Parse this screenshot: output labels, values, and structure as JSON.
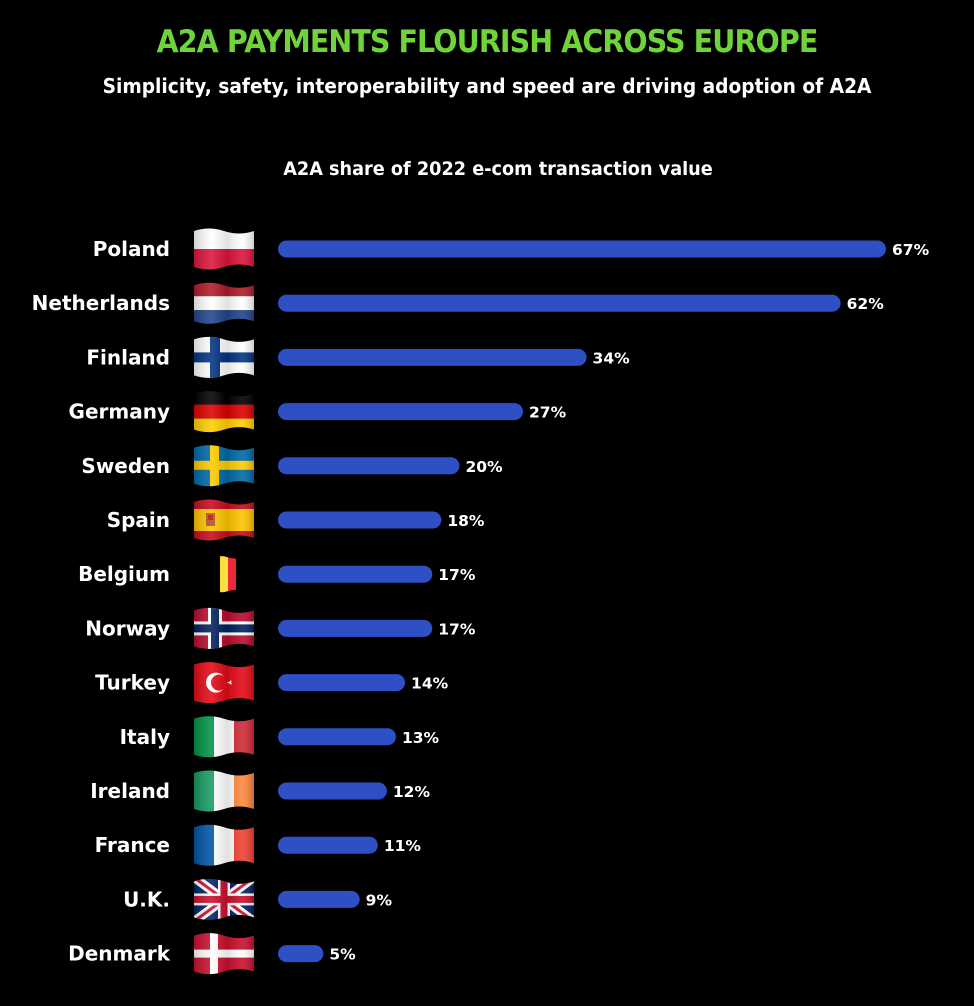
{
  "header": {
    "title": "A2A PAYMENTS FLOURISH ACROSS EUROPE",
    "subtitle": "Simplicity, safety, interoperability and speed are driving adoption of A2A"
  },
  "colors": {
    "title": "#6fd33b",
    "bar": "#2f4fc4",
    "background": "#000000"
  },
  "chart_data": {
    "type": "bar",
    "orientation": "horizontal",
    "title": "A2A share of 2022 e-com transaction value",
    "xlabel": "",
    "ylabel": "",
    "xlim": [
      0,
      67
    ],
    "grid": false,
    "legend": "none",
    "categories": [
      "Poland",
      "Netherlands",
      "Finland",
      "Germany",
      "Sweden",
      "Spain",
      "Belgium",
      "Norway",
      "Turkey",
      "Italy",
      "Ireland",
      "France",
      "U.K.",
      "Denmark"
    ],
    "values": [
      67,
      62,
      34,
      27,
      20,
      18,
      17,
      17,
      14,
      13,
      12,
      11,
      9,
      5
    ],
    "value_labels": [
      "67%",
      "62%",
      "34%",
      "27%",
      "20%",
      "18%",
      "17%",
      "17%",
      "14%",
      "13%",
      "12%",
      "11%",
      "9%",
      "5%"
    ],
    "flags": [
      "poland-flag-icon",
      "netherlands-flag-icon",
      "finland-flag-icon",
      "germany-flag-icon",
      "sweden-flag-icon",
      "spain-flag-icon",
      "belgium-flag-icon",
      "norway-flag-icon",
      "turkey-flag-icon",
      "italy-flag-icon",
      "ireland-flag-icon",
      "france-flag-icon",
      "uk-flag-icon",
      "denmark-flag-icon"
    ]
  }
}
